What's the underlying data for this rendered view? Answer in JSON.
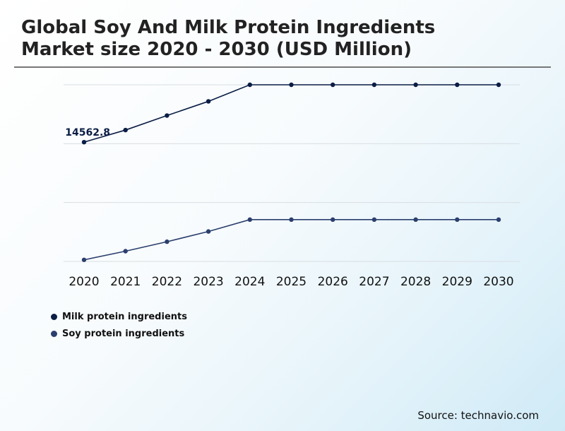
{
  "chart_data": {
    "type": "line",
    "title_line1": "Global Soy And Milk Protein Ingredients",
    "title_line2": "Market size 2020 - 2030 (USD Million)",
    "x": [
      "2020",
      "2021",
      "2022",
      "2023",
      "2024",
      "2025",
      "2026",
      "2027",
      "2028",
      "2029",
      "2030"
    ],
    "series": [
      {
        "name": "Milk protein ingredients",
        "color": "#0b1d45",
        "values": [
          14562.8,
          15330,
          16250,
          17150,
          18200,
          18200,
          18200,
          18200,
          18200,
          18200,
          18200
        ],
        "label": "14562.8"
      },
      {
        "name": "Soy protein ingredients",
        "color": "#2b3f6e",
        "values": [
          7100,
          7650,
          8250,
          8900,
          9650,
          9650,
          9650,
          9650,
          9650,
          9650,
          9650
        ]
      }
    ],
    "ylim": [
      7000,
      18200
    ],
    "grid": true,
    "legend": "bottom-left"
  },
  "source": "Source: technavio.com"
}
